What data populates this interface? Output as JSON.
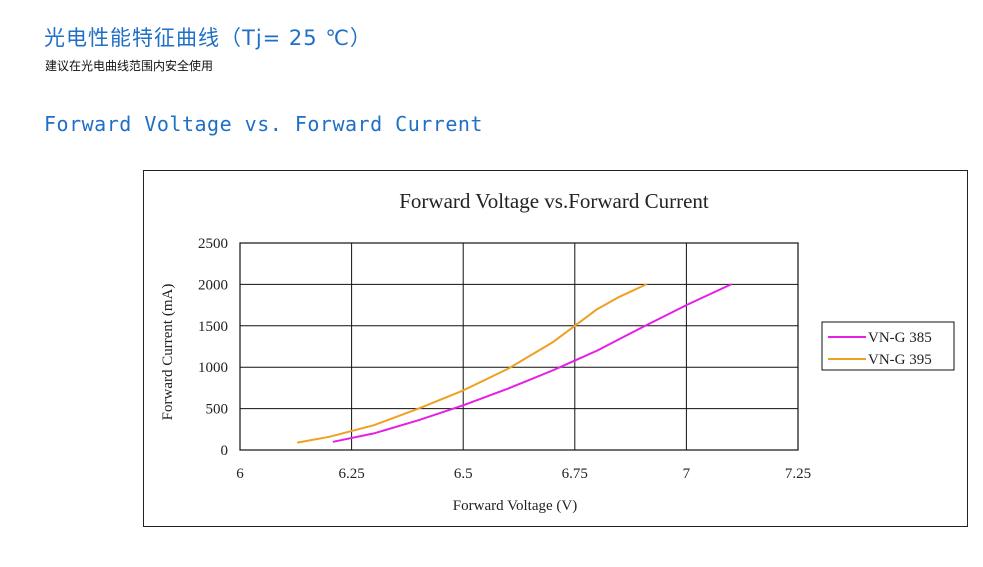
{
  "header": {
    "title": "光电性能特征曲线（Tj= 25 ℃）",
    "subtitle": "建议在光电曲线范围内安全使用",
    "section_title": "Forward Voltage vs. Forward Current"
  },
  "chart_data": {
    "type": "line",
    "title": "Forward Voltage vs.Forward Current",
    "xlabel": "Forward Voltage (V)",
    "ylabel": "Forward Current (mA)",
    "xlim": [
      6,
      7.25
    ],
    "ylim": [
      0,
      2500
    ],
    "x_ticks": [
      "6",
      "6.25",
      "6.5",
      "6.75",
      "7",
      "7.25"
    ],
    "y_ticks": [
      "0",
      "500",
      "1000",
      "1500",
      "2000",
      "2500"
    ],
    "grid": true,
    "legend_position": "right",
    "series": [
      {
        "name": "VN-G 385",
        "color": "#e61ee6",
        "x": [
          6.21,
          6.3,
          6.4,
          6.5,
          6.6,
          6.7,
          6.75,
          6.8,
          6.9,
          7.0,
          7.1
        ],
        "y": [
          100,
          200,
          360,
          540,
          740,
          960,
          1080,
          1200,
          1480,
          1750,
          2000
        ]
      },
      {
        "name": "VN-G 395",
        "color": "#f0a020",
        "x": [
          6.13,
          6.2,
          6.3,
          6.4,
          6.5,
          6.6,
          6.7,
          6.75,
          6.8,
          6.85,
          6.91
        ],
        "y": [
          90,
          160,
          300,
          500,
          720,
          980,
          1300,
          1500,
          1700,
          1850,
          2000
        ]
      }
    ]
  }
}
